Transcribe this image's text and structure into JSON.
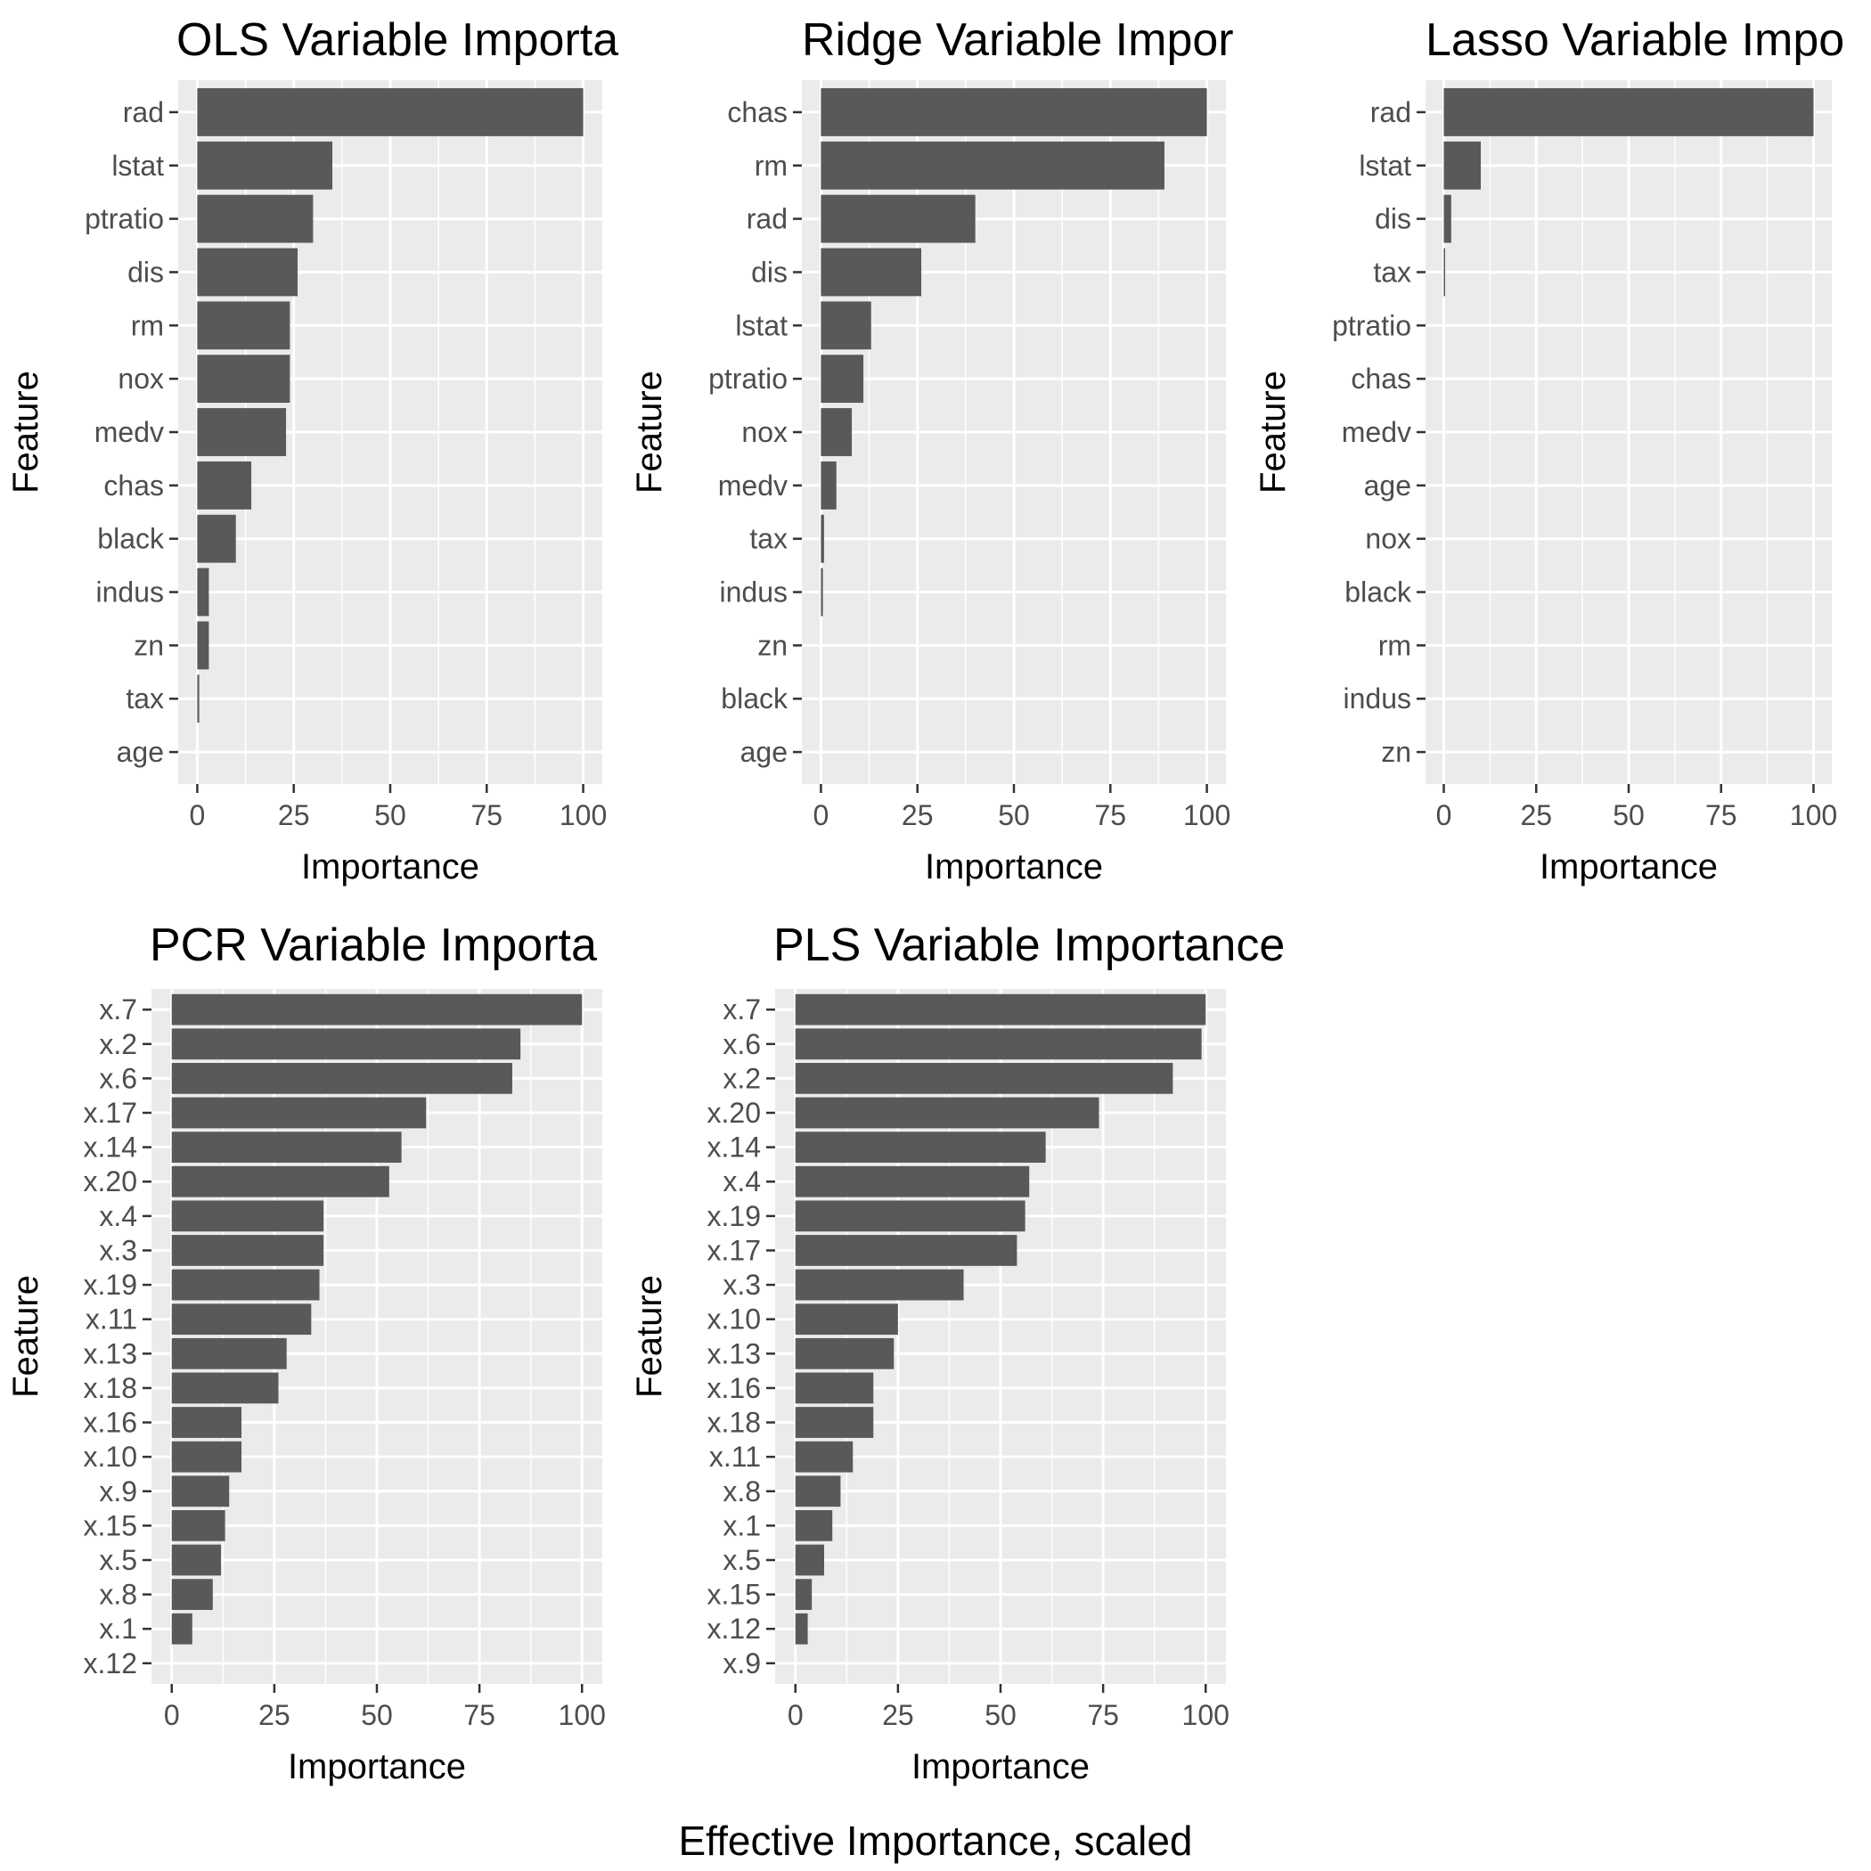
{
  "caption": "Effective Importance, scaled",
  "chart_data": [
    {
      "type": "bar",
      "orientation": "horizontal",
      "title": "OLS Variable Importa",
      "xlabel": "Importance",
      "ylabel": "Feature",
      "xlim": [
        0,
        100
      ],
      "xticks": [
        0,
        25,
        50,
        75,
        100
      ],
      "grid": true,
      "categories": [
        "rad",
        "lstat",
        "ptratio",
        "dis",
        "rm",
        "nox",
        "medv",
        "chas",
        "black",
        "indus",
        "zn",
        "tax",
        "age"
      ],
      "values": [
        100,
        35,
        30,
        26,
        24,
        24,
        23,
        14,
        10,
        3,
        3,
        0.5,
        0
      ]
    },
    {
      "type": "bar",
      "orientation": "horizontal",
      "title": "Ridge Variable Impor",
      "xlabel": "Importance",
      "ylabel": "Feature",
      "xlim": [
        0,
        100
      ],
      "xticks": [
        0,
        25,
        50,
        75,
        100
      ],
      "grid": true,
      "categories": [
        "chas",
        "rm",
        "rad",
        "dis",
        "lstat",
        "ptratio",
        "nox",
        "medv",
        "tax",
        "indus",
        "zn",
        "black",
        "age"
      ],
      "values": [
        100,
        89,
        40,
        26,
        13,
        11,
        8,
        4,
        0.8,
        0.5,
        0,
        0,
        0
      ]
    },
    {
      "type": "bar",
      "orientation": "horizontal",
      "title": "Lasso Variable Impo",
      "xlabel": "Importance",
      "ylabel": "Feature",
      "xlim": [
        0,
        100
      ],
      "xticks": [
        0,
        25,
        50,
        75,
        100
      ],
      "grid": true,
      "categories": [
        "rad",
        "lstat",
        "dis",
        "tax",
        "ptratio",
        "chas",
        "medv",
        "age",
        "nox",
        "black",
        "rm",
        "indus",
        "zn"
      ],
      "values": [
        100,
        10,
        2,
        0.3,
        0,
        0,
        0,
        0,
        0,
        0,
        0,
        0,
        0
      ]
    },
    {
      "type": "bar",
      "orientation": "horizontal",
      "title": "PCR Variable Importa",
      "xlabel": "Importance",
      "ylabel": "Feature",
      "xlim": [
        0,
        100
      ],
      "xticks": [
        0,
        25,
        50,
        75,
        100
      ],
      "grid": true,
      "categories": [
        "x.7",
        "x.2",
        "x.6",
        "x.17",
        "x.14",
        "x.20",
        "x.4",
        "x.3",
        "x.19",
        "x.11",
        "x.13",
        "x.18",
        "x.16",
        "x.10",
        "x.9",
        "x.15",
        "x.5",
        "x.8",
        "x.1",
        "x.12"
      ],
      "values": [
        100,
        85,
        83,
        62,
        56,
        53,
        37,
        37,
        36,
        34,
        28,
        26,
        17,
        17,
        14,
        13,
        12,
        10,
        5,
        0
      ]
    },
    {
      "type": "bar",
      "orientation": "horizontal",
      "title": "PLS Variable Importance",
      "xlabel": "Importance",
      "ylabel": "Feature",
      "xlim": [
        0,
        100
      ],
      "xticks": [
        0,
        25,
        50,
        75,
        100
      ],
      "grid": true,
      "categories": [
        "x.7",
        "x.6",
        "x.2",
        "x.20",
        "x.14",
        "x.4",
        "x.19",
        "x.17",
        "x.3",
        "x.10",
        "x.13",
        "x.16",
        "x.18",
        "x.11",
        "x.8",
        "x.1",
        "x.5",
        "x.15",
        "x.12",
        "x.9"
      ],
      "values": [
        100,
        99,
        92,
        74,
        61,
        57,
        56,
        54,
        41,
        25,
        24,
        19,
        19,
        14,
        11,
        9,
        7,
        4,
        3,
        0
      ]
    }
  ]
}
